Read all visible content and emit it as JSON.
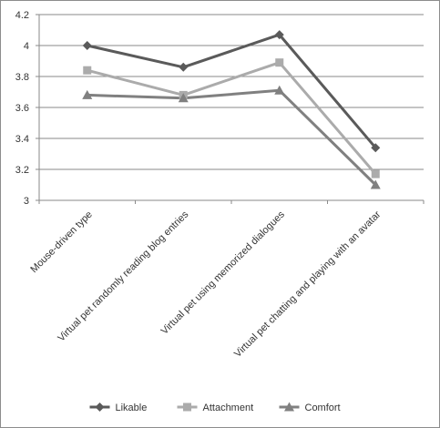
{
  "chart_data": {
    "type": "line",
    "categories": [
      "Mouse-driven type",
      "Virtual pet randomly reading blog entries",
      "Virtual pet using memorized dialogues",
      "Virtual pet chatting and playing with an avatar"
    ],
    "series": [
      {
        "name": "Likable",
        "values": [
          4.0,
          3.86,
          4.07,
          3.34
        ],
        "color": "#5a5a5a",
        "marker": "diamond"
      },
      {
        "name": "Attachment",
        "values": [
          3.84,
          3.68,
          3.89,
          3.17
        ],
        "color": "#ababab",
        "marker": "square"
      },
      {
        "name": "Comfort",
        "values": [
          3.68,
          3.66,
          3.71,
          3.1
        ],
        "color": "#808080",
        "marker": "triangle"
      }
    ],
    "ylim": [
      3,
      4.2
    ],
    "yticks": [
      "3",
      "3.2",
      "3.4",
      "3.6",
      "3.8",
      "4",
      "4.2"
    ],
    "ytick_values": [
      3,
      3.2,
      3.4,
      3.6,
      3.8,
      4,
      4.2
    ],
    "grid": true,
    "legend_position": "bottom",
    "title": "",
    "xlabel": "",
    "ylabel": ""
  }
}
